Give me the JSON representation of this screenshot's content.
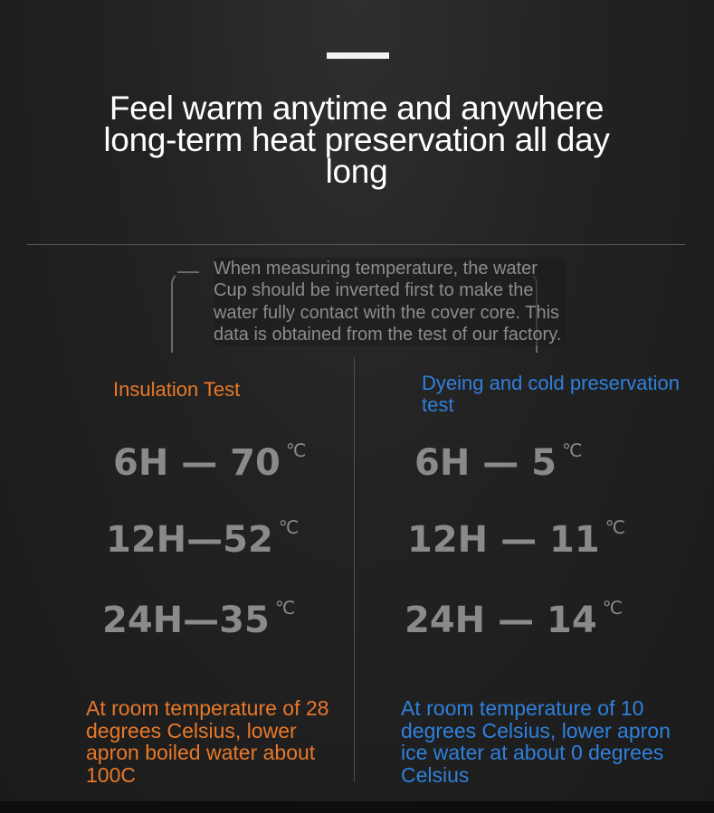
{
  "title": "Feel warm anytime and anywhere long-term heat preservation all day long",
  "note": "When measuring temperature, the water Cup should be inverted first to make the water fully contact with the cover core. This data is obtained from the test of our factory.",
  "insulation": {
    "heading": "Insulation Test",
    "readings": [
      {
        "time": "6H",
        "sep": " — ",
        "value": "70",
        "unit": "℃"
      },
      {
        "time": "12H",
        "sep": "—",
        "value": "52",
        "unit": "℃"
      },
      {
        "time": "24H",
        "sep": "—",
        "value": "35",
        "unit": "℃"
      }
    ],
    "footer": "At room temperature of 28 degrees Celsius, lower apron boiled water about 100C"
  },
  "cold": {
    "heading": "Dyeing and cold preservation test",
    "readings": [
      {
        "time": "6H",
        "sep": " — ",
        "value": "5",
        "unit": "℃"
      },
      {
        "time": "12H",
        "sep": " — ",
        "value": "11",
        "unit": "℃"
      },
      {
        "time": "24H",
        "sep": " — ",
        "value": "14",
        "unit": "℃"
      }
    ],
    "footer": "At room temperature of 10 degrees Celsius, lower apron ice water at about 0 degrees Celsius"
  },
  "colors": {
    "warm": "#e8782a",
    "cold": "#2f80dc",
    "reading": "#8a8a8a"
  }
}
